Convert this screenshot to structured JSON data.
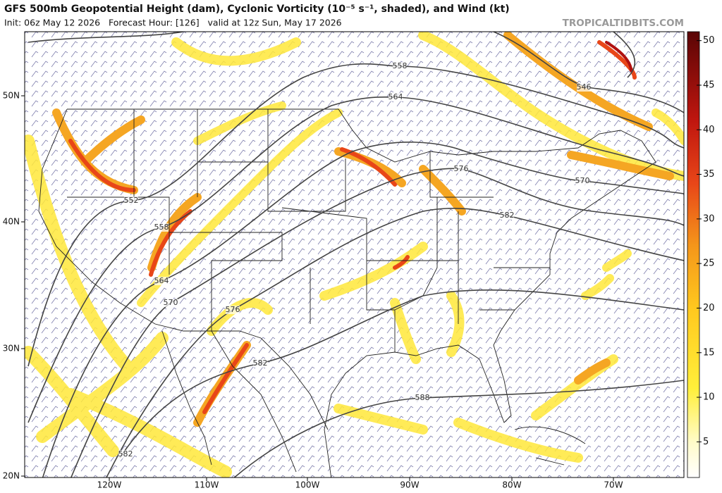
{
  "header": {
    "title": "GFS 500mb Geopotential Height (dam), Cyclonic Vorticity (10⁻⁵ s⁻¹, shaded), and Wind (kt)",
    "init": "Init: 06z May 12 2026   Forecast Hour: [126]   valid at 12z Sun, May 17 2026",
    "watermark": "TROPICALTIDBITS.COM"
  },
  "map": {
    "lat_labels": [
      "50N",
      "40N",
      "30N",
      "20N"
    ],
    "lon_labels": [
      "120W",
      "110W",
      "100W",
      "90W",
      "80W",
      "70W"
    ],
    "contour_labels": [
      "558",
      "564",
      "546",
      "576",
      "570",
      "582",
      "552",
      "558",
      "564",
      "570",
      "576",
      "582",
      "588",
      "582"
    ]
  },
  "colorbar": {
    "lim": [
      1,
      51
    ],
    "ticks": [
      5,
      10,
      15,
      20,
      25,
      30,
      35,
      40,
      45,
      50
    ]
  }
}
